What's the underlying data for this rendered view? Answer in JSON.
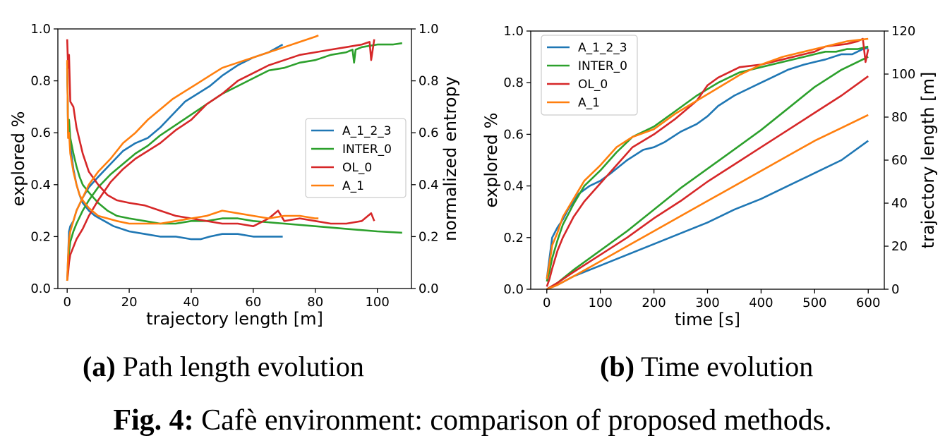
{
  "figure": {
    "caption_label": "Fig. 4:",
    "caption_text": " Cafè environment: comparison of proposed methods.",
    "colors": {
      "A_1_2_3": "#1f77b4",
      "INTER_0": "#2ca02c",
      "OL_0": "#d62728",
      "A_1": "#ff7f0e"
    }
  },
  "subfigs": [
    {
      "label": "(a)",
      "text": " Path length evolution"
    },
    {
      "label": "(b)",
      "text": " Time evolution"
    }
  ],
  "chart_data": [
    {
      "type": "line",
      "panel": "a",
      "xlabel": "trajectory length [m]",
      "ylabel": "explored %",
      "y2label": "normalized entropy",
      "xlim": [
        -3,
        111
      ],
      "ylim": [
        0,
        1.0
      ],
      "y2lim": [
        0,
        1.0
      ],
      "xticks": [
        0,
        20,
        40,
        60,
        80,
        100
      ],
      "yticks": [
        0.0,
        0.2,
        0.4,
        0.6,
        0.8,
        1.0
      ],
      "y2ticks": [
        0.0,
        0.2,
        0.4,
        0.6,
        0.8,
        1.0
      ],
      "legend": [
        "A_1_2_3",
        "INTER_0",
        "OL_0",
        "A_1"
      ],
      "legend_position": "center-right",
      "series": [
        {
          "name": "A_1_2_3",
          "color": "#1f77b4",
          "axis": "left",
          "kind": "explored",
          "x": [
            0,
            0.3,
            0.6,
            1,
            2,
            3,
            5,
            7,
            10,
            14,
            18,
            22,
            26,
            30,
            34,
            38,
            42,
            46,
            50,
            55,
            60,
            65,
            69.5
          ],
          "y": [
            0.03,
            0.12,
            0.22,
            0.24,
            0.26,
            0.3,
            0.35,
            0.39,
            0.43,
            0.48,
            0.53,
            0.56,
            0.58,
            0.62,
            0.67,
            0.72,
            0.75,
            0.78,
            0.82,
            0.86,
            0.89,
            0.91,
            0.94
          ]
        },
        {
          "name": "A_1_2_3",
          "color": "#1f77b4",
          "axis": "right",
          "kind": "entropy",
          "x": [
            0,
            0.3,
            0.6,
            1,
            2,
            3,
            4,
            5,
            7,
            9,
            12,
            15,
            20,
            25,
            30,
            35,
            40,
            43,
            46,
            50,
            55,
            60,
            65,
            69.5
          ],
          "y": [
            0.87,
            0.6,
            0.62,
            0.55,
            0.46,
            0.4,
            0.36,
            0.33,
            0.3,
            0.28,
            0.26,
            0.24,
            0.22,
            0.21,
            0.2,
            0.2,
            0.19,
            0.19,
            0.2,
            0.21,
            0.21,
            0.2,
            0.2,
            0.2
          ]
        },
        {
          "name": "INTER_0",
          "color": "#2ca02c",
          "axis": "left",
          "kind": "explored",
          "x": [
            0,
            0.3,
            0.6,
            1,
            2,
            3,
            5,
            7,
            10,
            14,
            18,
            22,
            26,
            30,
            35,
            40,
            45,
            50,
            55,
            60,
            65,
            70,
            75,
            80,
            85,
            90,
            92,
            92.5,
            93,
            95,
            100,
            105,
            108
          ],
          "y": [
            0.03,
            0.08,
            0.14,
            0.18,
            0.22,
            0.25,
            0.3,
            0.34,
            0.39,
            0.44,
            0.48,
            0.52,
            0.55,
            0.59,
            0.63,
            0.67,
            0.71,
            0.75,
            0.78,
            0.81,
            0.84,
            0.85,
            0.87,
            0.88,
            0.9,
            0.91,
            0.92,
            0.87,
            0.92,
            0.93,
            0.94,
            0.94,
            0.945
          ]
        },
        {
          "name": "INTER_0",
          "color": "#2ca02c",
          "axis": "right",
          "kind": "entropy",
          "x": [
            0,
            0.3,
            0.6,
            1,
            2,
            3,
            4,
            5,
            7,
            10,
            13,
            16,
            20,
            25,
            30,
            35,
            40,
            45,
            50,
            55,
            60,
            70,
            80,
            90,
            100,
            108
          ],
          "y": [
            0.85,
            0.62,
            0.65,
            0.58,
            0.52,
            0.47,
            0.43,
            0.4,
            0.37,
            0.33,
            0.3,
            0.28,
            0.27,
            0.26,
            0.25,
            0.25,
            0.26,
            0.26,
            0.27,
            0.27,
            0.26,
            0.25,
            0.24,
            0.23,
            0.22,
            0.215
          ]
        },
        {
          "name": "OL_0",
          "color": "#d62728",
          "axis": "left",
          "kind": "explored",
          "x": [
            0,
            0.3,
            0.6,
            1,
            2,
            3,
            5,
            7,
            10,
            14,
            18,
            22,
            26,
            30,
            35,
            40,
            45,
            50,
            55,
            60,
            65,
            70,
            75,
            80,
            85,
            90,
            95,
            97.5,
            98,
            99
          ],
          "y": [
            0.03,
            0.06,
            0.1,
            0.13,
            0.16,
            0.19,
            0.23,
            0.28,
            0.34,
            0.41,
            0.46,
            0.5,
            0.53,
            0.56,
            0.61,
            0.65,
            0.71,
            0.75,
            0.8,
            0.83,
            0.86,
            0.88,
            0.9,
            0.91,
            0.92,
            0.93,
            0.94,
            0.95,
            0.88,
            0.96
          ]
        },
        {
          "name": "OL_0",
          "color": "#d62728",
          "axis": "right",
          "kind": "entropy",
          "x": [
            0,
            0.3,
            0.6,
            1,
            2,
            3,
            5,
            7,
            10,
            13,
            16,
            20,
            25,
            30,
            35,
            40,
            45,
            50,
            55,
            60,
            65,
            68,
            70,
            75,
            80,
            85,
            90,
            95,
            98,
            99
          ],
          "y": [
            0.96,
            0.85,
            0.9,
            0.72,
            0.7,
            0.62,
            0.52,
            0.45,
            0.4,
            0.36,
            0.34,
            0.33,
            0.32,
            0.3,
            0.28,
            0.27,
            0.26,
            0.25,
            0.25,
            0.24,
            0.27,
            0.3,
            0.26,
            0.27,
            0.26,
            0.25,
            0.25,
            0.26,
            0.29,
            0.26
          ]
        },
        {
          "name": "A_1",
          "color": "#ff7f0e",
          "axis": "left",
          "kind": "explored",
          "x": [
            0,
            0.3,
            0.6,
            1,
            2,
            3,
            5,
            7,
            10,
            14,
            18,
            22,
            26,
            30,
            34,
            38,
            42,
            46,
            50,
            55,
            60,
            65,
            70,
            75,
            80,
            81
          ],
          "y": [
            0.03,
            0.12,
            0.19,
            0.22,
            0.26,
            0.3,
            0.35,
            0.4,
            0.45,
            0.5,
            0.56,
            0.6,
            0.65,
            0.69,
            0.73,
            0.76,
            0.79,
            0.82,
            0.85,
            0.87,
            0.89,
            0.91,
            0.93,
            0.95,
            0.97,
            0.975
          ]
        },
        {
          "name": "A_1",
          "color": "#ff7f0e",
          "axis": "right",
          "kind": "entropy",
          "x": [
            0,
            0.3,
            0.6,
            1,
            2,
            3,
            4,
            5,
            7,
            10,
            13,
            16,
            20,
            25,
            30,
            35,
            40,
            45,
            50,
            55,
            60,
            65,
            70,
            75,
            80,
            81
          ],
          "y": [
            0.88,
            0.58,
            0.6,
            0.52,
            0.45,
            0.4,
            0.36,
            0.34,
            0.31,
            0.28,
            0.27,
            0.26,
            0.25,
            0.25,
            0.25,
            0.26,
            0.27,
            0.28,
            0.3,
            0.29,
            0.28,
            0.27,
            0.28,
            0.28,
            0.27,
            0.27
          ]
        }
      ]
    },
    {
      "type": "line",
      "panel": "b",
      "xlabel": "time [s]",
      "ylabel": "explored %",
      "y2label": "trajectory length [m]",
      "xlim": [
        -30,
        630
      ],
      "ylim": [
        0,
        1.0
      ],
      "y2lim": [
        0,
        120
      ],
      "xticks": [
        0,
        100,
        200,
        300,
        400,
        500,
        600
      ],
      "yticks": [
        0.0,
        0.2,
        0.4,
        0.6,
        0.8,
        1.0
      ],
      "y2ticks": [
        0,
        20,
        40,
        60,
        80,
        100,
        120
      ],
      "legend": [
        "A_1_2_3",
        "INTER_0",
        "OL_0",
        "A_1"
      ],
      "legend_position": "top-left",
      "series": [
        {
          "name": "A_1_2_3",
          "color": "#1f77b4",
          "axis": "left",
          "kind": "explored",
          "x": [
            0,
            5,
            10,
            15,
            20,
            30,
            40,
            50,
            60,
            80,
            100,
            120,
            150,
            180,
            200,
            220,
            250,
            280,
            300,
            320,
            350,
            380,
            400,
            420,
            450,
            480,
            500,
            520,
            550,
            570,
            580,
            590,
            600
          ],
          "y": [
            0.04,
            0.12,
            0.2,
            0.22,
            0.24,
            0.27,
            0.31,
            0.34,
            0.37,
            0.4,
            0.42,
            0.45,
            0.5,
            0.54,
            0.55,
            0.57,
            0.61,
            0.64,
            0.67,
            0.71,
            0.75,
            0.78,
            0.8,
            0.82,
            0.85,
            0.87,
            0.88,
            0.89,
            0.91,
            0.91,
            0.92,
            0.93,
            0.935
          ]
        },
        {
          "name": "A_1_2_3",
          "color": "#1f77b4",
          "axis": "right",
          "kind": "length",
          "x": [
            0,
            20,
            50,
            100,
            150,
            200,
            250,
            300,
            350,
            400,
            450,
            500,
            550,
            600
          ],
          "y": [
            0,
            2,
            6,
            11,
            16,
            21,
            26,
            31,
            37,
            42,
            48,
            54,
            60,
            69
          ]
        },
        {
          "name": "INTER_0",
          "color": "#2ca02c",
          "axis": "left",
          "kind": "explored",
          "x": [
            0,
            5,
            10,
            20,
            30,
            50,
            70,
            100,
            130,
            160,
            200,
            240,
            280,
            320,
            360,
            400,
            440,
            480,
            500,
            520,
            540,
            560,
            580,
            600
          ],
          "y": [
            0.03,
            0.07,
            0.12,
            0.19,
            0.25,
            0.33,
            0.4,
            0.46,
            0.53,
            0.59,
            0.63,
            0.69,
            0.75,
            0.8,
            0.84,
            0.86,
            0.88,
            0.9,
            0.91,
            0.92,
            0.92,
            0.93,
            0.93,
            0.94
          ]
        },
        {
          "name": "INTER_0",
          "color": "#2ca02c",
          "axis": "right",
          "kind": "length",
          "x": [
            0,
            20,
            50,
            100,
            150,
            200,
            250,
            300,
            350,
            400,
            450,
            500,
            550,
            600
          ],
          "y": [
            0,
            3,
            9,
            18,
            27,
            37,
            47,
            56,
            65,
            74,
            84,
            94,
            102,
            108
          ]
        },
        {
          "name": "OL_0",
          "color": "#d62728",
          "axis": "left",
          "kind": "explored",
          "x": [
            0,
            5,
            10,
            20,
            30,
            50,
            70,
            100,
            130,
            160,
            200,
            240,
            280,
            300,
            320,
            360,
            400,
            440,
            480,
            500,
            520,
            560,
            580,
            590,
            595,
            600
          ],
          "y": [
            0.01,
            0.04,
            0.08,
            0.15,
            0.2,
            0.28,
            0.34,
            0.41,
            0.48,
            0.55,
            0.6,
            0.66,
            0.73,
            0.79,
            0.82,
            0.86,
            0.87,
            0.89,
            0.91,
            0.92,
            0.94,
            0.95,
            0.96,
            0.97,
            0.88,
            0.93
          ]
        },
        {
          "name": "OL_0",
          "color": "#d62728",
          "axis": "right",
          "kind": "length",
          "x": [
            0,
            20,
            50,
            100,
            150,
            200,
            250,
            300,
            350,
            400,
            450,
            500,
            550,
            600
          ],
          "y": [
            0,
            3,
            8,
            16,
            24,
            33,
            41,
            50,
            58,
            66,
            74,
            82,
            90,
            99
          ]
        },
        {
          "name": "A_1",
          "color": "#ff7f0e",
          "axis": "left",
          "kind": "explored",
          "x": [
            0,
            5,
            10,
            20,
            30,
            50,
            70,
            100,
            130,
            160,
            200,
            240,
            280,
            320,
            360,
            400,
            440,
            480,
            500,
            520,
            540,
            560,
            580,
            600
          ],
          "y": [
            0.04,
            0.1,
            0.17,
            0.22,
            0.28,
            0.35,
            0.42,
            0.48,
            0.55,
            0.59,
            0.62,
            0.68,
            0.73,
            0.78,
            0.83,
            0.87,
            0.9,
            0.92,
            0.93,
            0.94,
            0.95,
            0.96,
            0.965,
            0.97
          ]
        },
        {
          "name": "A_1",
          "color": "#ff7f0e",
          "axis": "right",
          "kind": "length",
          "x": [
            0,
            20,
            50,
            100,
            150,
            200,
            250,
            300,
            350,
            400,
            450,
            500,
            550,
            600
          ],
          "y": [
            0,
            2,
            6,
            13,
            20,
            27,
            34,
            41,
            48,
            55,
            62,
            69,
            75,
            81
          ]
        }
      ]
    }
  ]
}
